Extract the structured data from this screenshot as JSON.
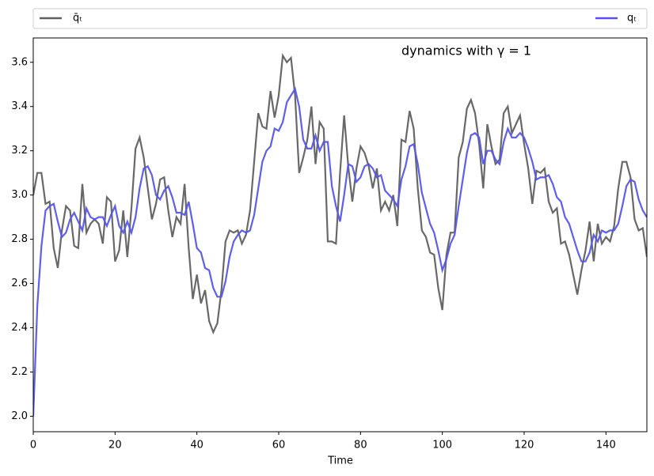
{
  "chart_data": {
    "type": "line",
    "annotation": "dynamics with γ = 1",
    "xlabel": "Time",
    "legend": "top",
    "x": [
      0,
      1,
      2,
      3,
      4,
      5,
      6,
      7,
      8,
      9,
      10,
      11,
      12,
      13,
      14,
      15,
      16,
      17,
      18,
      19,
      20,
      21,
      22,
      23,
      24,
      25,
      26,
      27,
      28,
      29,
      30,
      31,
      32,
      33,
      34,
      35,
      36,
      37,
      38,
      39,
      40,
      41,
      42,
      43,
      44,
      45,
      46,
      47,
      48,
      49,
      50,
      51,
      52,
      53,
      54,
      55,
      56,
      57,
      58,
      59,
      60,
      61,
      62,
      63,
      64,
      65,
      66,
      67,
      68,
      69,
      70,
      71,
      72,
      73,
      74,
      75,
      76,
      77,
      78,
      79,
      80,
      81,
      82,
      83,
      84,
      85,
      86,
      87,
      88,
      89,
      90,
      91,
      92,
      93,
      94,
      95,
      96,
      97,
      98,
      99,
      100,
      101,
      102,
      103,
      104,
      105,
      106,
      107,
      108,
      109,
      110,
      111,
      112,
      113,
      114,
      115,
      116,
      117,
      118,
      119,
      120,
      121,
      122,
      123,
      124,
      125,
      126,
      127,
      128,
      129,
      130,
      131,
      132,
      133,
      134,
      135,
      136,
      137,
      138,
      139,
      140,
      141,
      142,
      143,
      144,
      145,
      146,
      147,
      148,
      149,
      150
    ],
    "series": [
      {
        "name": "q̄ₜ",
        "color": "#606060",
        "values": [
          3.0,
          3.1,
          3.1,
          2.96,
          2.97,
          2.76,
          2.67,
          2.84,
          2.95,
          2.93,
          2.77,
          2.76,
          3.05,
          2.83,
          2.87,
          2.89,
          2.87,
          2.78,
          2.99,
          2.97,
          2.7,
          2.75,
          2.93,
          2.72,
          2.94,
          3.21,
          3.26,
          3.17,
          3.03,
          2.89,
          2.96,
          3.07,
          3.08,
          2.93,
          2.81,
          2.9,
          2.87,
          3.05,
          2.76,
          2.53,
          2.64,
          2.51,
          2.57,
          2.43,
          2.38,
          2.42,
          2.57,
          2.79,
          2.84,
          2.83,
          2.84,
          2.78,
          2.82,
          2.93,
          3.15,
          3.37,
          3.31,
          3.3,
          3.47,
          3.35,
          3.45,
          3.63,
          3.6,
          3.62,
          3.45,
          3.1,
          3.17,
          3.25,
          3.4,
          3.14,
          3.33,
          3.3,
          2.79,
          2.79,
          2.78,
          3.1,
          3.36,
          3.13,
          2.97,
          3.12,
          3.22,
          3.19,
          3.13,
          3.03,
          3.12,
          2.93,
          2.97,
          2.93,
          3.0,
          2.86,
          3.25,
          3.24,
          3.38,
          3.3,
          3.03,
          2.84,
          2.81,
          2.74,
          2.73,
          2.58,
          2.48,
          2.73,
          2.83,
          2.83,
          3.17,
          3.24,
          3.39,
          3.43,
          3.37,
          3.23,
          3.03,
          3.32,
          3.22,
          3.14,
          3.16,
          3.37,
          3.4,
          3.28,
          3.32,
          3.36,
          3.23,
          3.12,
          2.96,
          3.11,
          3.1,
          3.12,
          2.97,
          2.92,
          2.94,
          2.78,
          2.79,
          2.73,
          2.64,
          2.55,
          2.66,
          2.75,
          2.88,
          2.7,
          2.87,
          2.78,
          2.81,
          2.79,
          2.86,
          3.03,
          3.15,
          3.15,
          3.08,
          2.89,
          2.84,
          2.85,
          2.72
        ]
      },
      {
        "name": "qₜ",
        "color": "#5555ee",
        "values": [
          2.0,
          2.5,
          2.77,
          2.93,
          2.95,
          2.96,
          2.88,
          2.81,
          2.83,
          2.89,
          2.92,
          2.88,
          2.84,
          2.94,
          2.9,
          2.89,
          2.9,
          2.9,
          2.86,
          2.91,
          2.95,
          2.86,
          2.83,
          2.88,
          2.83,
          2.9,
          3.03,
          3.12,
          3.13,
          3.09,
          3.0,
          2.98,
          3.02,
          3.04,
          2.99,
          2.92,
          2.92,
          2.91,
          2.97,
          2.87,
          2.76,
          2.74,
          2.67,
          2.66,
          2.58,
          2.54,
          2.54,
          2.61,
          2.72,
          2.79,
          2.82,
          2.84,
          2.83,
          2.84,
          2.91,
          3.03,
          3.15,
          3.2,
          3.22,
          3.3,
          3.29,
          3.33,
          3.42,
          3.45,
          3.48,
          3.4,
          3.25,
          3.21,
          3.21,
          3.27,
          3.2,
          3.24,
          3.24,
          3.04,
          2.95,
          2.88,
          3.0,
          3.14,
          3.13,
          3.06,
          3.08,
          3.13,
          3.14,
          3.12,
          3.08,
          3.09,
          3.02,
          3.0,
          2.98,
          2.95,
          3.07,
          3.13,
          3.22,
          3.23,
          3.14,
          3.01,
          2.94,
          2.87,
          2.83,
          2.75,
          2.66,
          2.71,
          2.78,
          2.82,
          2.95,
          3.07,
          3.19,
          3.27,
          3.28,
          3.26,
          3.14,
          3.2,
          3.2,
          3.16,
          3.14,
          3.24,
          3.3,
          3.26,
          3.26,
          3.28,
          3.26,
          3.21,
          3.15,
          3.07,
          3.08,
          3.08,
          3.09,
          3.05,
          2.99,
          2.97,
          2.9,
          2.87,
          2.81,
          2.75,
          2.7,
          2.7,
          2.74,
          2.82,
          2.79,
          2.84,
          2.83,
          2.84,
          2.84,
          2.87,
          2.95,
          3.04,
          3.07,
          3.06,
          2.98,
          2.93,
          2.9
        ]
      }
    ],
    "xlim": [
      0,
      150
    ],
    "xticks": [
      0,
      20,
      40,
      60,
      80,
      100,
      120,
      140
    ],
    "ylim": [
      1.93,
      3.71
    ],
    "yticks": [
      {
        "value": 2.0,
        "label": "2.0"
      },
      {
        "value": 2.2,
        "label": "2.2"
      },
      {
        "value": 2.4,
        "label": "2.4"
      },
      {
        "value": 2.6,
        "label": "2.6"
      },
      {
        "value": 2.8,
        "label": "2.8"
      },
      {
        "value": 3.0,
        "label": "3.0"
      },
      {
        "value": 3.2,
        "label": "3.2"
      },
      {
        "value": 3.4,
        "label": "3.4"
      },
      {
        "value": 3.6,
        "label": "3.6"
      }
    ]
  }
}
